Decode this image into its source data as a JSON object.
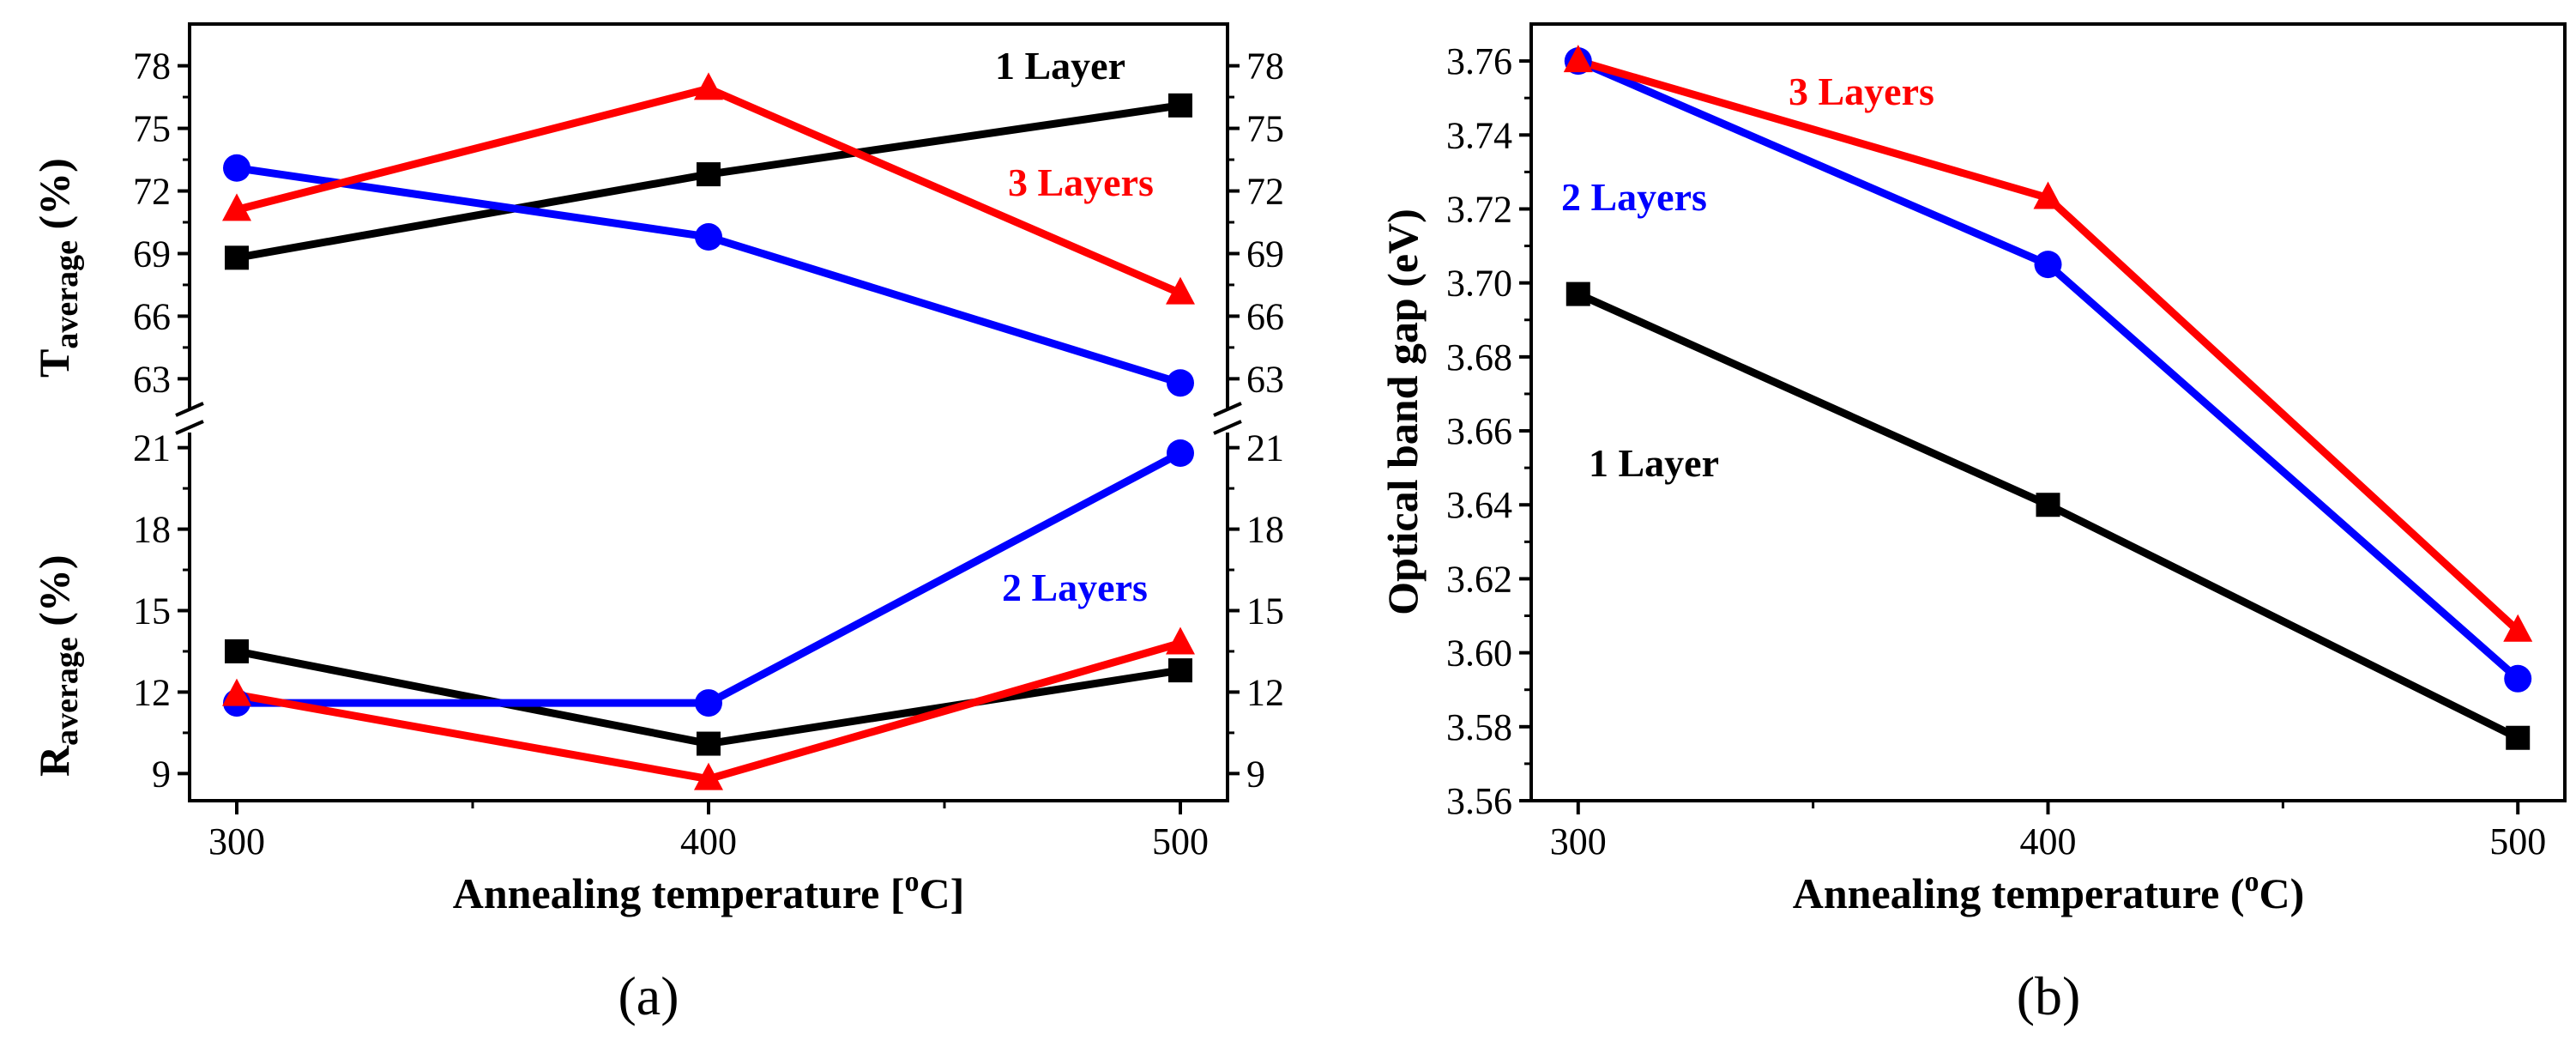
{
  "chart_data": [
    {
      "type": "line",
      "panel_label": "(a)",
      "xlabel": "Annealing temperature [",
      "xlabel_sup": "o",
      "xlabel_tail": "C]",
      "x": [
        300,
        400,
        500
      ],
      "x_ticks": [
        "300",
        "400",
        "500"
      ],
      "xlim": [
        290,
        510
      ],
      "top": {
        "ylabel_main": "T",
        "ylabel_sub": "average",
        "ylabel_tail": " (%)",
        "ylim": [
          61,
          80
        ],
        "y_ticks": [
          "63",
          "66",
          "69",
          "72",
          "75",
          "78"
        ],
        "series": [
          {
            "name": "1 Layer",
            "color": "#000000",
            "marker": "square",
            "values": [
              68.8,
              72.8,
              76.1
            ]
          },
          {
            "name": "2 Layers",
            "color": "#0000ff",
            "marker": "circle",
            "values": [
              73.1,
              69.8,
              62.8
            ]
          },
          {
            "name": "3 Layers",
            "color": "#ff0000",
            "marker": "triangle",
            "values": [
              71.1,
              76.9,
              67.1
            ]
          }
        ]
      },
      "bottom": {
        "ylabel_main": "R",
        "ylabel_sub": "average",
        "ylabel_tail": " (%)",
        "ylim": [
          8,
          22
        ],
        "y_ticks": [
          "9",
          "12",
          "15",
          "18",
          "21"
        ],
        "series": [
          {
            "name": "1 Layer",
            "color": "#000000",
            "marker": "square",
            "values": [
              13.5,
              10.1,
              12.8
            ]
          },
          {
            "name": "2 Layers",
            "color": "#0000ff",
            "marker": "circle",
            "values": [
              11.6,
              11.6,
              20.8
            ]
          },
          {
            "name": "3 Layers",
            "color": "#ff0000",
            "marker": "triangle",
            "values": [
              11.9,
              8.8,
              13.8
            ]
          }
        ]
      },
      "annotations": [
        {
          "text": "1 Layer",
          "color": "#000000"
        },
        {
          "text": "3 Layers",
          "color": "#ff0000"
        },
        {
          "text": "2 Layers",
          "color": "#0000ff"
        }
      ]
    },
    {
      "type": "line",
      "panel_label": "(b)",
      "xlabel": "Annealing temperature (",
      "xlabel_sup": "o",
      "xlabel_tail": "C)",
      "ylabel": "Optical band gap (eV)",
      "x": [
        300,
        400,
        500
      ],
      "x_ticks": [
        "300",
        "400",
        "500"
      ],
      "xlim": [
        290,
        510
      ],
      "ylim": [
        3.56,
        3.77
      ],
      "y_ticks": [
        "3.56",
        "3.58",
        "3.60",
        "3.62",
        "3.64",
        "3.66",
        "3.68",
        "3.70",
        "3.72",
        "3.74",
        "3.76"
      ],
      "series": [
        {
          "name": "1 Layer",
          "color": "#000000",
          "marker": "square",
          "values": [
            3.697,
            3.64,
            3.577
          ]
        },
        {
          "name": "2 Layers",
          "color": "#0000ff",
          "marker": "circle",
          "values": [
            3.76,
            3.705,
            3.593
          ]
        },
        {
          "name": "3 Layers",
          "color": "#ff0000",
          "marker": "triangle",
          "values": [
            3.76,
            3.723,
            3.606
          ]
        }
      ],
      "annotations": [
        {
          "text": "3 Layers",
          "color": "#ff0000"
        },
        {
          "text": "2 Layers",
          "color": "#0000ff"
        },
        {
          "text": "1 Layer",
          "color": "#000000"
        }
      ]
    }
  ]
}
